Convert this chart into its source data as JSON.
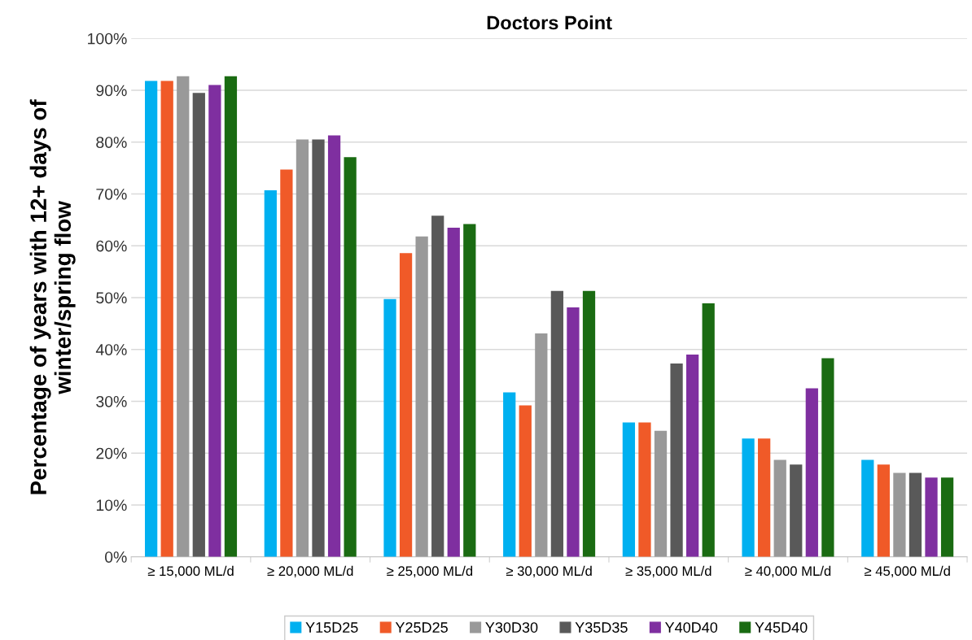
{
  "chart_data": {
    "type": "bar",
    "title": "Doctors Point",
    "ylabel": "Percentage of years with 12+ days of\nwinter/spring flow",
    "categories": [
      "≥ 15,000 ML/d",
      "≥ 20,000 ML/d",
      "≥ 25,000 ML/d",
      "≥ 30,000 ML/d",
      "≥ 35,000 ML/d",
      "≥ 40,000 ML/d",
      "≥ 45,000 ML/d"
    ],
    "series": [
      {
        "name": "Y15D25",
        "color": "#00b0f0",
        "values": [
          91.8,
          70.7,
          49.7,
          31.7,
          25.9,
          22.8,
          18.7
        ]
      },
      {
        "name": "Y25D25",
        "color": "#f05a28",
        "values": [
          91.8,
          74.7,
          58.6,
          29.2,
          25.9,
          22.8,
          17.8
        ]
      },
      {
        "name": "Y30D30",
        "color": "#999999",
        "values": [
          92.7,
          80.5,
          61.8,
          43.1,
          24.3,
          18.7,
          16.2
        ]
      },
      {
        "name": "Y35D35",
        "color": "#595959",
        "values": [
          89.5,
          80.5,
          65.8,
          51.3,
          37.3,
          17.8,
          16.2
        ]
      },
      {
        "name": "Y40D40",
        "color": "#7f2fa0",
        "values": [
          91.0,
          81.3,
          63.5,
          48.1,
          39.0,
          32.5,
          15.3
        ]
      },
      {
        "name": "Y45D40",
        "color": "#1a6b12",
        "values": [
          92.7,
          77.1,
          64.2,
          51.3,
          48.9,
          38.3,
          15.3
        ]
      }
    ],
    "ylim": [
      0,
      100
    ],
    "yticks": [
      {
        "value": 0,
        "label": "0%"
      },
      {
        "value": 10,
        "label": "10%"
      },
      {
        "value": 20,
        "label": "20%"
      },
      {
        "value": 30,
        "label": "30%"
      },
      {
        "value": 40,
        "label": "40%"
      },
      {
        "value": 50,
        "label": "50%"
      },
      {
        "value": 60,
        "label": "60%"
      },
      {
        "value": 70,
        "label": "70%"
      },
      {
        "value": 80,
        "label": "80%"
      },
      {
        "value": 90,
        "label": "90%"
      },
      {
        "value": 100,
        "label": "100%"
      }
    ],
    "grid": "y",
    "legend": "bottom"
  }
}
